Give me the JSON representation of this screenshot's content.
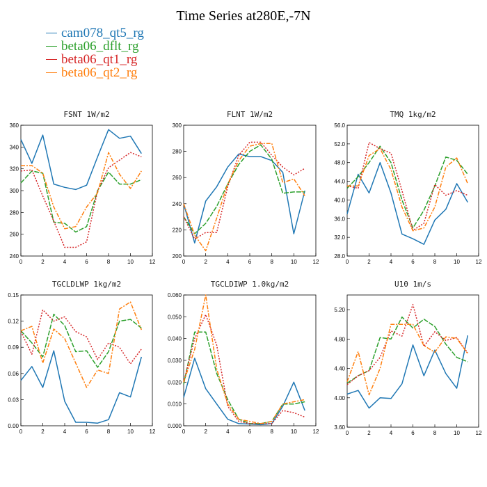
{
  "title": "Time Series at280E,-7N",
  "legend": [
    {
      "label": "cam078_qt5_rg",
      "color": "#1f77b4"
    },
    {
      "label": "beta06_dflt_rg",
      "color": "#2ca02c"
    },
    {
      "label": "beta06_qt1_rg",
      "color": "#d62728"
    },
    {
      "label": "beta06_qt2_rg",
      "color": "#ff7f0e"
    }
  ],
  "colors": {
    "cam078_qt5_rg": "#1f77b4",
    "beta06_dflt_rg": "#2ca02c",
    "beta06_qt1_rg": "#d62728",
    "beta06_qt2_rg": "#ff7f0e"
  },
  "chart_data": [
    {
      "type": "line",
      "title": "FSNT  1W/m2",
      "x": [
        0,
        1,
        2,
        3,
        4,
        5,
        6,
        7,
        8,
        9,
        10,
        11
      ],
      "xlim": [
        0,
        12
      ],
      "ylim": [
        240,
        360
      ],
      "xticks": [
        0,
        2,
        4,
        6,
        8,
        10,
        12
      ],
      "yticks": [
        240,
        260,
        280,
        300,
        320,
        340,
        360
      ],
      "yformat": 0,
      "series": [
        {
          "name": "cam078_qt5_rg",
          "values": [
            347,
            325,
            351,
            306,
            303,
            301,
            305,
            331,
            356,
            348,
            350,
            334
          ]
        },
        {
          "name": "beta06_dflt_rg",
          "values": [
            307,
            318,
            316,
            271,
            270,
            262,
            267,
            300,
            317,
            306,
            306,
            310
          ]
        },
        {
          "name": "beta06_qt1_rg",
          "values": [
            318,
            319,
            295,
            272,
            248,
            248,
            253,
            300,
            321,
            328,
            335,
            331
          ]
        },
        {
          "name": "beta06_qt2_rg",
          "values": [
            323,
            323,
            316,
            285,
            265,
            267,
            285,
            298,
            335,
            315,
            302,
            318
          ]
        }
      ]
    },
    {
      "type": "line",
      "title": "FLNT  1W/m2",
      "x": [
        0,
        1,
        2,
        3,
        4,
        5,
        6,
        7,
        8,
        9,
        10,
        11
      ],
      "xlim": [
        0,
        12
      ],
      "ylim": [
        200,
        300
      ],
      "xticks": [
        0,
        2,
        4,
        6,
        8,
        10,
        12
      ],
      "yticks": [
        200,
        220,
        240,
        260,
        280,
        300
      ],
      "yformat": 0,
      "series": [
        {
          "name": "cam078_qt5_rg",
          "values": [
            240,
            210,
            242,
            253,
            268,
            278,
            276,
            276,
            273,
            264,
            217,
            250
          ]
        },
        {
          "name": "beta06_dflt_rg",
          "values": [
            230,
            217,
            225,
            238,
            255,
            270,
            280,
            285,
            274,
            248,
            249,
            249
          ]
        },
        {
          "name": "beta06_qt1_rg",
          "values": [
            230,
            213,
            218,
            218,
            253,
            277,
            287,
            287,
            277,
            268,
            262,
            267
          ]
        },
        {
          "name": "beta06_qt2_rg",
          "values": [
            240,
            216,
            204,
            229,
            255,
            273,
            284,
            286,
            286,
            256,
            259,
            246
          ]
        }
      ]
    },
    {
      "type": "line",
      "title": "TMQ  1kg/m2",
      "x": [
        0,
        1,
        2,
        3,
        4,
        5,
        6,
        7,
        8,
        9,
        10,
        11
      ],
      "xlim": [
        0,
        12
      ],
      "ylim": [
        28,
        56
      ],
      "xticks": [
        0,
        2,
        4,
        6,
        8,
        10,
        12
      ],
      "yticks": [
        28,
        32,
        36,
        40,
        44,
        48,
        52,
        56
      ],
      "yformat": 1,
      "series": [
        {
          "name": "cam078_qt5_rg",
          "values": [
            37,
            45.5,
            41.5,
            48,
            41.5,
            32.7,
            31.7,
            30.5,
            35.7,
            38,
            43.5,
            39.5
          ]
        },
        {
          "name": "beta06_dflt_rg",
          "values": [
            42.5,
            45,
            48,
            51.5,
            48,
            40,
            34,
            37.8,
            43,
            49.2,
            48.5,
            45.5
          ]
        },
        {
          "name": "beta06_qt1_rg",
          "values": [
            43,
            42.5,
            52.3,
            51,
            50,
            42,
            33.5,
            35,
            43.3,
            41,
            42,
            41
          ]
        },
        {
          "name": "beta06_qt2_rg",
          "values": [
            43,
            43,
            49.5,
            51,
            46.5,
            38.5,
            33.4,
            34,
            38.5,
            47,
            49,
            43.5
          ]
        }
      ]
    },
    {
      "type": "line",
      "title": "TGCLDLWP  1kg/m2",
      "x": [
        0,
        1,
        2,
        3,
        4,
        5,
        6,
        7,
        8,
        9,
        10,
        11
      ],
      "xlim": [
        0,
        12
      ],
      "ylim": [
        0,
        0.15
      ],
      "xticks": [
        0,
        2,
        4,
        6,
        8,
        10,
        12
      ],
      "yticks": [
        0,
        0.03,
        0.06,
        0.09,
        0.12,
        0.15
      ],
      "yformat": 2,
      "series": [
        {
          "name": "cam078_qt5_rg",
          "values": [
            0.052,
            0.068,
            0.044,
            0.086,
            0.028,
            0.004,
            0.004,
            0.003,
            0.007,
            0.038,
            0.033,
            0.079
          ]
        },
        {
          "name": "beta06_dflt_rg",
          "values": [
            0.109,
            0.095,
            0.079,
            0.128,
            0.115,
            0.085,
            0.086,
            0.067,
            0.085,
            0.12,
            0.122,
            0.112
          ]
        },
        {
          "name": "beta06_qt1_rg",
          "values": [
            0.108,
            0.082,
            0.133,
            0.12,
            0.125,
            0.108,
            0.102,
            0.076,
            0.095,
            0.09,
            0.071,
            0.088
          ]
        },
        {
          "name": "beta06_qt2_rg",
          "values": [
            0.109,
            0.114,
            0.072,
            0.111,
            0.1,
            0.072,
            0.044,
            0.064,
            0.06,
            0.134,
            0.142,
            0.11
          ]
        }
      ]
    },
    {
      "type": "line",
      "title": "TGCLDIWP  1.0kg/m2",
      "x": [
        0,
        1,
        2,
        3,
        4,
        5,
        6,
        7,
        8,
        9,
        10,
        11
      ],
      "xlim": [
        0,
        12
      ],
      "ylim": [
        0,
        0.06
      ],
      "xticks": [
        0,
        2,
        4,
        6,
        8,
        10,
        12
      ],
      "yticks": [
        0,
        0.01,
        0.02,
        0.03,
        0.04,
        0.05,
        0.06
      ],
      "yformat": 3,
      "series": [
        {
          "name": "cam078_qt5_rg",
          "values": [
            0.013,
            0.031,
            0.017,
            0.01,
            0.003,
            0.001,
            0.0008,
            0.0005,
            0.001,
            0.009,
            0.02,
            0.007
          ]
        },
        {
          "name": "beta06_dflt_rg",
          "values": [
            0.019,
            0.043,
            0.043,
            0.024,
            0.012,
            0.003,
            0.001,
            0.001,
            0.002,
            0.01,
            0.01,
            0.011
          ]
        },
        {
          "name": "beta06_qt1_rg",
          "values": [
            0.02,
            0.04,
            0.051,
            0.037,
            0.009,
            0.002,
            0.001,
            0.001,
            0.001,
            0.007,
            0.006,
            0.004
          ]
        },
        {
          "name": "beta06_qt2_rg",
          "values": [
            0.02,
            0.035,
            0.06,
            0.026,
            0.01,
            0.003,
            0.002,
            0.001,
            0.002,
            0.01,
            0.011,
            0.012
          ]
        }
      ]
    },
    {
      "type": "line",
      "title": "U10  1m/s",
      "x": [
        0,
        1,
        2,
        3,
        4,
        5,
        6,
        7,
        8,
        9,
        10,
        11
      ],
      "xlim": [
        0,
        12
      ],
      "ylim": [
        3.6,
        5.4
      ],
      "xticks": [
        0,
        2,
        4,
        6,
        8,
        10,
        12
      ],
      "yticks": [
        3.6,
        4.0,
        4.4,
        4.8,
        5.2
      ],
      "yformat": 2,
      "series": [
        {
          "name": "cam078_qt5_rg",
          "values": [
            4.05,
            4.1,
            3.86,
            4.0,
            3.99,
            4.19,
            4.72,
            4.3,
            4.65,
            4.33,
            4.13,
            4.85
          ]
        },
        {
          "name": "beta06_dflt_rg",
          "values": [
            4.2,
            4.3,
            4.37,
            4.82,
            4.8,
            5.1,
            4.95,
            5.07,
            4.97,
            4.73,
            4.55,
            4.49
          ]
        },
        {
          "name": "beta06_qt1_rg",
          "values": [
            4.18,
            4.3,
            4.37,
            4.55,
            4.91,
            4.84,
            5.27,
            4.7,
            4.9,
            4.78,
            4.82,
            4.61
          ]
        },
        {
          "name": "beta06_qt2_rg",
          "values": [
            4.22,
            4.63,
            4.04,
            4.4,
            5.0,
            5.0,
            5.0,
            4.71,
            4.62,
            4.83,
            4.81,
            4.6
          ]
        }
      ]
    }
  ]
}
